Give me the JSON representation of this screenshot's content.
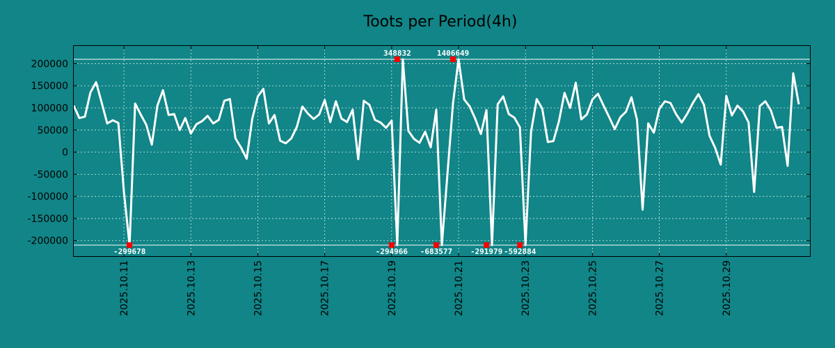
{
  "chart_data": {
    "type": "line",
    "title": "Toots per Period(4h)",
    "xlabel": "",
    "ylabel": "",
    "colors": {
      "background": "#118587",
      "line": "#ffffff",
      "marker": "#ff0000",
      "grid": "#d8ecec",
      "frame": "#000000"
    },
    "x_range": [
      "2025.10.09 12:00",
      "2025.10.31 12:00"
    ],
    "period_hours": 4,
    "ylim": [
      -235000,
      240000
    ],
    "clip_band": [
      -210000,
      210000
    ],
    "yticks": [
      200000,
      150000,
      100000,
      50000,
      0,
      -50000,
      -100000,
      -150000,
      -200000
    ],
    "ytick_labels": [
      "200000",
      "150000",
      "100000",
      "50000",
      "0",
      "-50000",
      "-100000",
      "-150000",
      "-200000"
    ],
    "xticks": [
      "2025.10.11",
      "2025.10.13",
      "2025.10.15",
      "2025.10.17",
      "2025.10.19",
      "2025.10.21",
      "2025.10.23",
      "2025.10.25",
      "2025.10.27",
      "2025.10.29"
    ],
    "series": [
      {
        "name": "toots",
        "start": "2025.10.09 12:00",
        "values": [
          105000,
          77000,
          80000,
          135000,
          158000,
          112000,
          65000,
          72000,
          66000,
          -90000,
          -210000,
          110000,
          85000,
          62000,
          17000,
          105000,
          140000,
          84000,
          86000,
          50000,
          77000,
          42000,
          63000,
          70000,
          82000,
          65000,
          73000,
          116000,
          120000,
          31000,
          10000,
          -15000,
          75000,
          126000,
          143000,
          65000,
          84000,
          26000,
          20000,
          31000,
          57000,
          103000,
          87000,
          75000,
          85000,
          118000,
          68000,
          115000,
          76000,
          68000,
          96000,
          -16000,
          116000,
          107000,
          73000,
          67000,
          55000,
          71000,
          -210000,
          210000,
          48000,
          30000,
          21000,
          46000,
          11000,
          96000,
          -210000,
          -50000,
          110000,
          210000,
          119000,
          103000,
          75000,
          41000,
          95000,
          -210000,
          108000,
          126000,
          86000,
          78000,
          56000,
          -210000,
          46000,
          120000,
          98000,
          23000,
          25000,
          70000,
          134000,
          100000,
          157000,
          74000,
          85000,
          119000,
          132000,
          105000,
          79000,
          52000,
          79000,
          91000,
          124000,
          73000,
          -130000,
          65000,
          44000,
          98000,
          115000,
          111000,
          86000,
          67000,
          87000,
          111000,
          131000,
          107000,
          37000,
          10000,
          -28000,
          127000,
          83000,
          105000,
          92000,
          67000,
          -90000,
          104000,
          115000,
          94000,
          55000,
          57000,
          -31000,
          178000,
          108000
        ]
      }
    ],
    "clipped_points": [
      {
        "date": "2025.10.11 04:00",
        "value": -299678,
        "label": "-299678"
      },
      {
        "date": "2025.10.19 00:00",
        "value": -294966,
        "label": "-294966"
      },
      {
        "date": "2025.10.19 04:00",
        "value": 348832,
        "label": "348832"
      },
      {
        "date": "2025.10.20 08:00",
        "value": -683577,
        "label": "-683577"
      },
      {
        "date": "2025.10.20 20:00",
        "value": 1406649,
        "label": "1406649"
      },
      {
        "date": "2025.10.21 20:00",
        "value": -291979,
        "label": "-291979"
      },
      {
        "date": "2025.10.22 20:00",
        "value": -592884,
        "label": "-592884"
      }
    ]
  }
}
